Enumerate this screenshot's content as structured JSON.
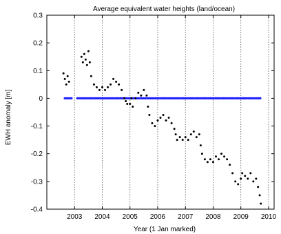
{
  "chart_data": {
    "type": "scatter",
    "title": "Average equivalent water heights (land/ocean)",
    "xlabel": "Year (1 Jan marked)",
    "ylabel": "EWH anomaly [m]",
    "xlim": [
      2002.0,
      2010.2
    ],
    "ylim": [
      -0.4,
      0.3
    ],
    "grid": "vertical-dotted",
    "x_ticks": [
      2003,
      2004,
      2005,
      2006,
      2007,
      2008,
      2009,
      2010
    ],
    "y_ticks": [
      -0.4,
      -0.3,
      -0.2,
      -0.1,
      0,
      0.1,
      0.2,
      0.3
    ],
    "series": [
      {
        "color": "#000000",
        "marker": "dot",
        "points": [
          [
            2002.6,
            0.09
          ],
          [
            2002.65,
            0.07
          ],
          [
            2002.7,
            0.05
          ],
          [
            2002.75,
            0.08
          ],
          [
            2002.8,
            0.06
          ],
          [
            2003.25,
            0.15
          ],
          [
            2003.3,
            0.13
          ],
          [
            2003.35,
            0.16
          ],
          [
            2003.4,
            0.14
          ],
          [
            2003.45,
            0.12
          ],
          [
            2003.5,
            0.17
          ],
          [
            2003.55,
            0.13
          ],
          [
            2003.6,
            0.08
          ],
          [
            2003.7,
            0.05
          ],
          [
            2003.8,
            0.04
          ],
          [
            2003.9,
            0.03
          ],
          [
            2004.0,
            0.04
          ],
          [
            2004.1,
            0.03
          ],
          [
            2004.2,
            0.04
          ],
          [
            2004.3,
            0.05
          ],
          [
            2004.4,
            0.07
          ],
          [
            2004.5,
            0.06
          ],
          [
            2004.6,
            0.05
          ],
          [
            2004.7,
            0.03
          ],
          [
            2004.8,
            0.0
          ],
          [
            2004.85,
            -0.01
          ],
          [
            2004.9,
            -0.02
          ],
          [
            2005.0,
            -0.02
          ],
          [
            2005.05,
            0.0
          ],
          [
            2005.1,
            -0.03
          ],
          [
            2005.2,
            0.0
          ],
          [
            2005.3,
            0.02
          ],
          [
            2005.4,
            0.01
          ],
          [
            2005.5,
            0.03
          ],
          [
            2005.6,
            0.01
          ],
          [
            2005.65,
            -0.03
          ],
          [
            2005.7,
            -0.06
          ],
          [
            2005.8,
            -0.09
          ],
          [
            2005.9,
            -0.1
          ],
          [
            2006.0,
            -0.08
          ],
          [
            2006.1,
            -0.07
          ],
          [
            2006.2,
            -0.06
          ],
          [
            2006.3,
            -0.08
          ],
          [
            2006.4,
            -0.07
          ],
          [
            2006.5,
            -0.09
          ],
          [
            2006.6,
            -0.11
          ],
          [
            2006.65,
            -0.13
          ],
          [
            2006.7,
            -0.15
          ],
          [
            2006.8,
            -0.14
          ],
          [
            2006.9,
            -0.15
          ],
          [
            2007.0,
            -0.14
          ],
          [
            2007.1,
            -0.15
          ],
          [
            2007.2,
            -0.13
          ],
          [
            2007.3,
            -0.12
          ],
          [
            2007.4,
            -0.14
          ],
          [
            2007.5,
            -0.13
          ],
          [
            2007.55,
            -0.17
          ],
          [
            2007.6,
            -0.2
          ],
          [
            2007.7,
            -0.22
          ],
          [
            2007.8,
            -0.23
          ],
          [
            2007.9,
            -0.22
          ],
          [
            2008.0,
            -0.23
          ],
          [
            2008.1,
            -0.21
          ],
          [
            2008.2,
            -0.22
          ],
          [
            2008.3,
            -0.2
          ],
          [
            2008.4,
            -0.21
          ],
          [
            2008.5,
            -0.22
          ],
          [
            2008.6,
            -0.24
          ],
          [
            2008.7,
            -0.27
          ],
          [
            2008.8,
            -0.3
          ],
          [
            2008.9,
            -0.31
          ],
          [
            2009.0,
            -0.29
          ],
          [
            2009.05,
            -0.27
          ],
          [
            2009.15,
            -0.28
          ],
          [
            2009.25,
            -0.29
          ],
          [
            2009.35,
            -0.27
          ],
          [
            2009.45,
            -0.3
          ],
          [
            2009.55,
            -0.29
          ],
          [
            2009.62,
            -0.32
          ],
          [
            2009.68,
            -0.35
          ],
          [
            2009.72,
            -0.38
          ]
        ]
      },
      {
        "color": "#1f1fff",
        "marker": "dot",
        "segments": [
          [
            2002.65,
            2002.9
          ],
          [
            2003.1,
            2009.75
          ]
        ],
        "value": 0.0
      }
    ]
  }
}
